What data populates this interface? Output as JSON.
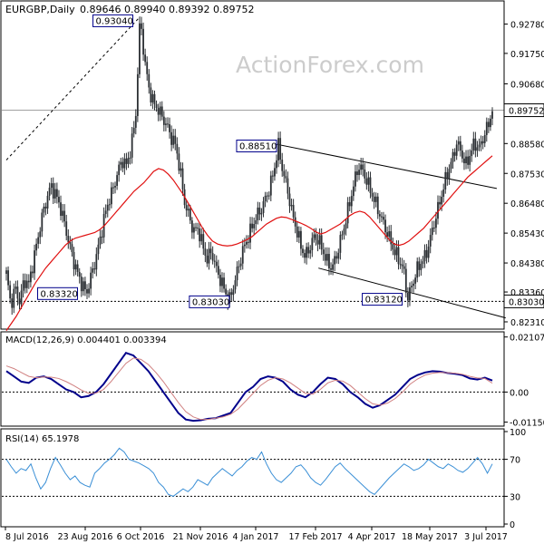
{
  "chart_data": [
    {
      "type": "candlestick",
      "panel": "price",
      "symbol_header": "EURGBP,Daily",
      "ohlc_header": "0.89646 0.89940 0.89392 0.89752",
      "watermark": "ActionForex.com",
      "ylim": [
        0.8215,
        0.935
      ],
      "y_ticks": [
        "0.92780",
        "0.91750",
        "0.90680",
        "0.89752",
        "0.88580",
        "0.87530",
        "0.86480",
        "0.85430",
        "0.84380",
        "0.83360",
        "0.83030",
        "0.82310"
      ],
      "current_price": 0.89752,
      "support_level": 0.8303,
      "close_series": [
        0.84,
        0.829,
        0.835,
        0.83,
        0.838,
        0.836,
        0.844,
        0.852,
        0.86,
        0.866,
        0.871,
        0.868,
        0.864,
        0.858,
        0.851,
        0.845,
        0.84,
        0.836,
        0.8332,
        0.839,
        0.845,
        0.852,
        0.86,
        0.866,
        0.87,
        0.876,
        0.88,
        0.878,
        0.885,
        0.895,
        0.9304,
        0.915,
        0.905,
        0.9,
        0.898,
        0.895,
        0.892,
        0.888,
        0.885,
        0.876,
        0.865,
        0.86,
        0.855,
        0.856,
        0.85,
        0.845,
        0.848,
        0.842,
        0.838,
        0.834,
        0.8303,
        0.836,
        0.842,
        0.848,
        0.852,
        0.856,
        0.86,
        0.862,
        0.866,
        0.87,
        0.876,
        0.8851,
        0.876,
        0.87,
        0.862,
        0.856,
        0.85,
        0.846,
        0.849,
        0.853,
        0.852,
        0.848,
        0.844,
        0.842,
        0.846,
        0.852,
        0.858,
        0.865,
        0.872,
        0.878,
        0.876,
        0.872,
        0.868,
        0.864,
        0.86,
        0.856,
        0.852,
        0.848,
        0.845,
        0.842,
        0.8312,
        0.836,
        0.841,
        0.844,
        0.846,
        0.852,
        0.858,
        0.864,
        0.87,
        0.876,
        0.88,
        0.886,
        0.883,
        0.878,
        0.882,
        0.886,
        0.884,
        0.888,
        0.892,
        0.8975
      ],
      "sma_series": [
        0.82,
        0.8225,
        0.825,
        0.828,
        0.831,
        0.834,
        0.837,
        0.8395,
        0.842,
        0.844,
        0.846,
        0.848,
        0.85,
        0.8515,
        0.8525,
        0.853,
        0.8535,
        0.854,
        0.8545,
        0.8555,
        0.857,
        0.859,
        0.861,
        0.863,
        0.865,
        0.867,
        0.869,
        0.8705,
        0.872,
        0.874,
        0.876,
        0.877,
        0.8765,
        0.875,
        0.873,
        0.8705,
        0.868,
        0.865,
        0.862,
        0.859,
        0.856,
        0.8535,
        0.8515,
        0.8505,
        0.85,
        0.8498,
        0.85,
        0.8505,
        0.8512,
        0.852,
        0.853,
        0.8545,
        0.856,
        0.8575,
        0.8585,
        0.8595,
        0.86,
        0.8598,
        0.8592,
        0.8585,
        0.8578,
        0.857,
        0.856,
        0.8548,
        0.854,
        0.8545,
        0.8555,
        0.8565,
        0.8575,
        0.859,
        0.8605,
        0.8615,
        0.862,
        0.8615,
        0.86,
        0.858,
        0.856,
        0.854,
        0.852,
        0.8505,
        0.85,
        0.8505,
        0.8515,
        0.853,
        0.8545,
        0.856,
        0.858,
        0.86,
        0.862,
        0.864,
        0.866,
        0.868,
        0.87,
        0.872,
        0.874,
        0.8755,
        0.877,
        0.8785,
        0.88,
        0.8815
      ],
      "price_labels": [
        {
          "text": "0.93040",
          "value": 0.9304,
          "index": 30
        },
        {
          "text": "0.88510",
          "value": 0.8851,
          "index": 61
        },
        {
          "text": "0.83320",
          "value": 0.8332,
          "index": 18
        },
        {
          "text": "0.83030",
          "value": 0.8303,
          "index": 50
        },
        {
          "text": "0.83120",
          "value": 0.8312,
          "index": 90
        }
      ],
      "trend_lines": [
        {
          "name": "channel-upper",
          "style": "solid",
          "from": {
            "index": 56,
            "value": 0.887
          },
          "to": {
            "index": 110,
            "value": 0.87
          }
        },
        {
          "name": "channel-lower",
          "style": "solid",
          "from": {
            "index": 70,
            "value": 0.842
          },
          "to": {
            "index": 112,
            "value": 0.8245
          }
        },
        {
          "name": "uptrend-dashed",
          "style": "dashed",
          "from": {
            "index": 0,
            "value": 0.88
          },
          "to": {
            "index": 30,
            "value": 0.9304
          }
        }
      ],
      "colors": {
        "candles": "#2b2f33",
        "sma": "#e01010",
        "lines": "#000000",
        "grid": "#000000",
        "label_border": "#00008b"
      }
    },
    {
      "type": "line",
      "panel": "macd",
      "header": "MACD(12,26,9) 0.004401 0.003394",
      "ylim": [
        -0.012,
        0.022
      ],
      "y_ticks": [
        "0.021074",
        "0.00",
        "-0.011507"
      ],
      "series": [
        {
          "role": "macd",
          "color": "#00008b",
          "values": [
            0.008,
            0.006,
            0.004,
            0.0035,
            0.0055,
            0.006,
            0.005,
            0.003,
            0.001,
            0.0,
            -0.002,
            -0.0015,
            0.0,
            0.003,
            0.007,
            0.011,
            0.015,
            0.014,
            0.011,
            0.008,
            0.004,
            0.0,
            -0.004,
            -0.008,
            -0.0105,
            -0.011,
            -0.0108,
            -0.0102,
            -0.01,
            -0.009,
            -0.008,
            -0.004,
            0.0,
            0.002,
            0.005,
            0.006,
            0.0055,
            0.004,
            0.001,
            -0.001,
            -0.002,
            0.0,
            0.003,
            0.0055,
            0.005,
            0.003,
            0.0,
            -0.002,
            -0.0045,
            -0.006,
            -0.005,
            -0.003,
            -0.001,
            0.002,
            0.005,
            0.0065,
            0.0075,
            0.008,
            0.0078,
            0.0073,
            0.007,
            0.0065,
            0.0052,
            0.0048,
            0.0055,
            0.0044
          ]
        },
        {
          "role": "signal",
          "color": "#d08080",
          "values": [
            0.01,
            0.009,
            0.0075,
            0.006,
            0.0055,
            0.0058,
            0.0057,
            0.0052,
            0.004,
            0.0025,
            0.0008,
            -0.0005,
            -0.0004,
            0.001,
            0.004,
            0.0075,
            0.011,
            0.013,
            0.0125,
            0.0105,
            0.0075,
            0.004,
            0.0,
            -0.004,
            -0.0075,
            -0.0095,
            -0.0105,
            -0.0105,
            -0.01,
            -0.0095,
            -0.0085,
            -0.0065,
            -0.0035,
            -0.0005,
            0.0025,
            0.0045,
            0.0055,
            0.005,
            0.0035,
            0.0015,
            -0.0005,
            -0.0008,
            0.001,
            0.0035,
            0.0045,
            0.0042,
            0.0025,
            0.0,
            -0.0025,
            -0.0045,
            -0.005,
            -0.0042,
            -0.0025,
            0.0,
            0.003,
            0.005,
            0.0065,
            0.0072,
            0.0075,
            0.0074,
            0.0072,
            0.0068,
            0.006,
            0.0054,
            0.0052,
            0.0034
          ]
        }
      ]
    },
    {
      "type": "line",
      "panel": "rsi",
      "header": "RSI(14) 65.1978",
      "ylim": [
        0,
        100
      ],
      "y_ticks": [
        "100",
        "70",
        "30",
        "0"
      ],
      "levels": [
        70,
        30
      ],
      "series": [
        {
          "role": "rsi",
          "color": "#3a8fd6",
          "values": [
            70,
            62,
            55,
            60,
            58,
            65,
            50,
            38,
            45,
            60,
            72,
            64,
            55,
            48,
            52,
            45,
            42,
            40,
            55,
            60,
            66,
            70,
            75,
            82,
            78,
            70,
            68,
            66,
            63,
            60,
            55,
            45,
            40,
            32,
            30,
            34,
            38,
            35,
            40,
            48,
            45,
            42,
            50,
            55,
            60,
            56,
            52,
            58,
            62,
            68,
            72,
            70,
            78,
            65,
            55,
            48,
            45,
            50,
            55,
            62,
            64,
            58,
            50,
            45,
            42,
            48,
            55,
            62,
            66,
            60,
            55,
            50,
            45,
            40,
            35,
            32,
            38,
            44,
            50,
            55,
            60,
            65,
            62,
            58,
            60,
            64,
            70,
            66,
            62,
            60,
            65,
            62,
            58,
            56,
            60,
            66,
            72,
            65,
            55,
            65
          ]
        }
      ]
    }
  ],
  "x_axis_labels": [
    "8 Jul 2016",
    "23 Aug 2016",
    "6 Oct 2016",
    "21 Nov 2016",
    "4 Jan 2017",
    "17 Feb 2017",
    "4 Apr 2017",
    "18 May 2017",
    "3 Jul 2017"
  ]
}
